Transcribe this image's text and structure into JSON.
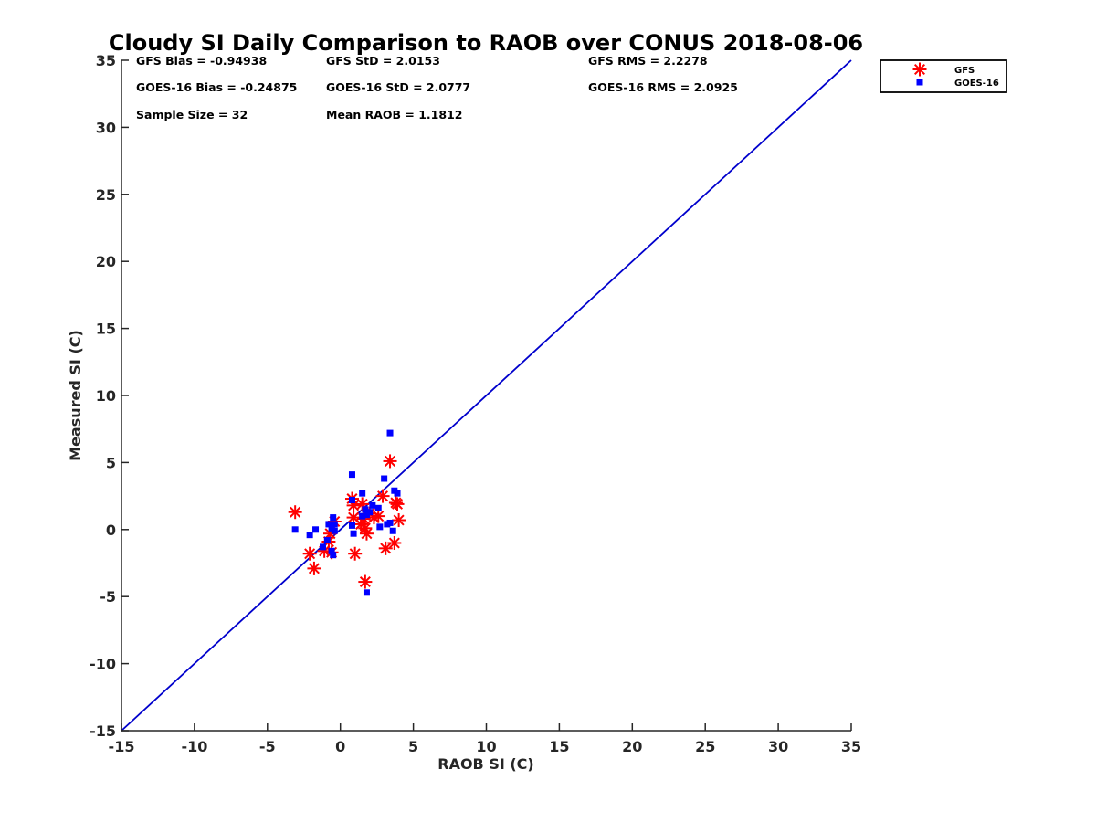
{
  "chart_data": {
    "type": "scatter",
    "title": "Cloudy SI Daily Comparison to RAOB over CONUS 2018-08-06",
    "xlabel": "RAOB SI (C)",
    "ylabel": "Measured SI (C)",
    "xlim": [
      -15,
      35
    ],
    "ylim": [
      -15,
      35
    ],
    "xticks": [
      -15,
      -10,
      -5,
      0,
      5,
      10,
      15,
      20,
      25,
      30,
      35
    ],
    "yticks": [
      -15,
      -10,
      -5,
      0,
      5,
      10,
      15,
      20,
      25,
      30,
      35
    ],
    "xtick_labels": [
      "-15",
      "-10",
      "-5",
      "0",
      "5",
      "10",
      "15",
      "20",
      "25",
      "30",
      "35"
    ],
    "ytick_labels": [
      "-15",
      "-10",
      "-5",
      "0",
      "5",
      "10",
      "15",
      "20",
      "25",
      "30",
      "35"
    ],
    "grid": false,
    "legend_position": "top-right",
    "reference_line": {
      "type": "one-to-one",
      "color": "#0000cc"
    },
    "stats": [
      "GFS Bias = -0.94938",
      "GFS StD = 2.0153",
      "GFS RMS = 2.2278",
      "GOES-16 Bias = -0.24875",
      "GOES-16 StD = 2.0777",
      "GOES-16 RMS = 2.0925",
      "Sample Size = 32",
      "Mean RAOB = 1.1812"
    ],
    "series": [
      {
        "name": "GFS",
        "marker": "asterisk",
        "color": "#ff0000",
        "points": [
          [
            -3.1,
            1.3
          ],
          [
            -2.1,
            -1.8
          ],
          [
            -1.8,
            -2.9
          ],
          [
            -1.1,
            -1.6
          ],
          [
            -0.6,
            -1.7
          ],
          [
            -0.7,
            -0.3
          ],
          [
            -0.4,
            0.6
          ],
          [
            0.8,
            2.3
          ],
          [
            0.9,
            1.8
          ],
          [
            0.9,
            0.9
          ],
          [
            1.0,
            -1.8
          ],
          [
            1.5,
            1.9
          ],
          [
            1.6,
            0.8
          ],
          [
            1.7,
            0.1
          ],
          [
            1.8,
            -0.3
          ],
          [
            1.7,
            -3.9
          ],
          [
            2.0,
            1.2
          ],
          [
            2.3,
            0.9
          ],
          [
            2.6,
            1.0
          ],
          [
            2.9,
            2.5
          ],
          [
            3.1,
            -1.4
          ],
          [
            3.4,
            5.1
          ],
          [
            3.7,
            -1.0
          ],
          [
            3.8,
            2.0
          ],
          [
            3.9,
            1.9
          ],
          [
            4.0,
            0.7
          ],
          [
            1.4,
            0.4
          ],
          [
            -0.8,
            -0.9
          ]
        ]
      },
      {
        "name": "GOES-16",
        "marker": "square",
        "color": "#0000ff",
        "points": [
          [
            -3.1,
            0.0
          ],
          [
            -2.1,
            -0.4
          ],
          [
            -1.7,
            0.0
          ],
          [
            -1.2,
            -1.3
          ],
          [
            -0.9,
            -0.8
          ],
          [
            -0.8,
            0.4
          ],
          [
            -0.6,
            0.1
          ],
          [
            -0.5,
            0.9
          ],
          [
            -0.4,
            -0.1
          ],
          [
            -0.5,
            -1.9
          ],
          [
            -0.4,
            0.4
          ],
          [
            -0.6,
            -1.6
          ],
          [
            0.8,
            4.1
          ],
          [
            0.8,
            2.2
          ],
          [
            0.8,
            0.3
          ],
          [
            0.9,
            -0.3
          ],
          [
            1.5,
            2.7
          ],
          [
            1.7,
            1.5
          ],
          [
            1.8,
            1.1
          ],
          [
            1.8,
            -4.7
          ],
          [
            2.2,
            1.8
          ],
          [
            2.6,
            1.6
          ],
          [
            2.7,
            0.2
          ],
          [
            3.0,
            3.8
          ],
          [
            3.2,
            0.4
          ],
          [
            3.4,
            7.2
          ],
          [
            3.6,
            -0.1
          ],
          [
            3.7,
            2.9
          ],
          [
            3.9,
            2.7
          ],
          [
            3.4,
            0.5
          ],
          [
            2.0,
            1.3
          ],
          [
            1.5,
            1.0
          ]
        ]
      }
    ]
  }
}
